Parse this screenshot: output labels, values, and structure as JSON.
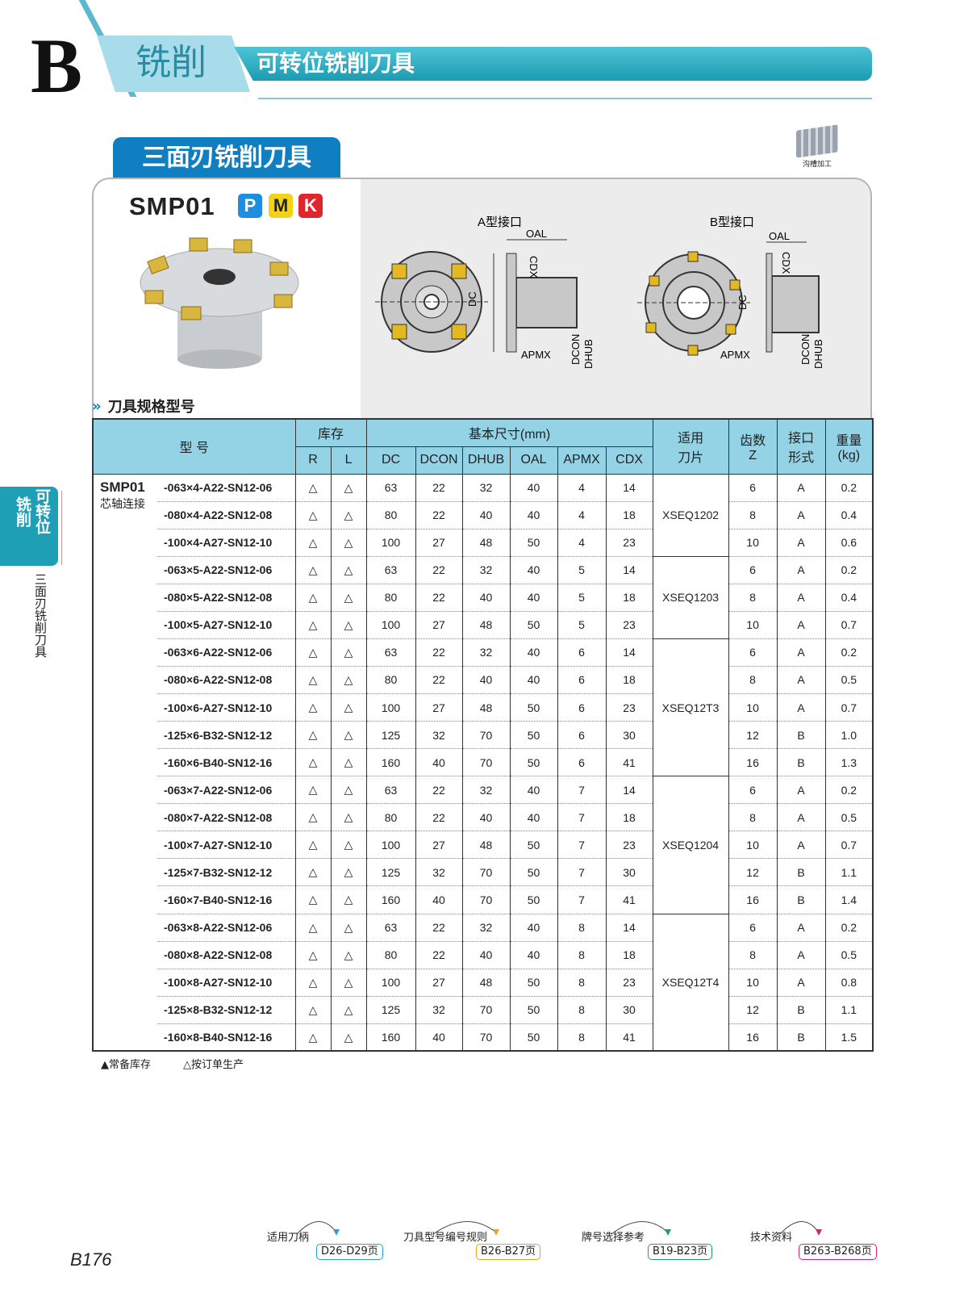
{
  "header": {
    "letter": "B",
    "category": "铣削",
    "title": "可转位铣削刀具"
  },
  "section": {
    "title": "三面刃铣削刀具",
    "application_icon": "groove-machining-icon",
    "application_label": "沟槽加工"
  },
  "product": {
    "name": "SMP01",
    "materials": [
      {
        "label": "P",
        "color": "#1e8fe0"
      },
      {
        "label": "M",
        "color": "#f3d21a"
      },
      {
        "label": "K",
        "color": "#e0262d"
      }
    ],
    "diagram_a_title": "A型接口",
    "diagram_b_title": "B型接口",
    "dims": {
      "oal": "OAL",
      "cdx": "CDX",
      "dc": "DC",
      "apmx": "APMX",
      "dcon": "DCON",
      "dhub": "DHUB"
    }
  },
  "spec_title": "刀具规格型号",
  "table": {
    "headers": {
      "model": "型 号",
      "stock": "库存",
      "r": "R",
      "l": "L",
      "basic": "基本尺寸(mm)",
      "dc": "DC",
      "dcon": "DCON",
      "dhub": "DHUB",
      "oal": "OAL",
      "apmx": "APMX",
      "cdx": "CDX",
      "insert": "适用\n刀片",
      "teeth": "齿数\nZ",
      "interface": "接口\n形式",
      "weight": "重量\n(kg)"
    },
    "series_name": "SMP01",
    "series_desc": "芯轴连接",
    "insert_groups": [
      {
        "insert": "XSEQ1202",
        "rows": 3
      },
      {
        "insert": "XSEQ1203",
        "rows": 3
      },
      {
        "insert": "XSEQ12T3",
        "rows": 5
      },
      {
        "insert": "XSEQ1204",
        "rows": 5
      },
      {
        "insert": "XSEQ12T4",
        "rows": 5
      }
    ],
    "rows": [
      [
        "-063×4-A22-SN12-06",
        "△",
        "△",
        "63",
        "22",
        "32",
        "40",
        "4",
        "14",
        "6",
        "A",
        "0.2"
      ],
      [
        "-080×4-A22-SN12-08",
        "△",
        "△",
        "80",
        "22",
        "40",
        "40",
        "4",
        "18",
        "8",
        "A",
        "0.4"
      ],
      [
        "-100×4-A27-SN12-10",
        "△",
        "△",
        "100",
        "27",
        "48",
        "50",
        "4",
        "23",
        "10",
        "A",
        "0.6"
      ],
      [
        "-063×5-A22-SN12-06",
        "△",
        "△",
        "63",
        "22",
        "32",
        "40",
        "5",
        "14",
        "6",
        "A",
        "0.2"
      ],
      [
        "-080×5-A22-SN12-08",
        "△",
        "△",
        "80",
        "22",
        "40",
        "40",
        "5",
        "18",
        "8",
        "A",
        "0.4"
      ],
      [
        "-100×5-A27-SN12-10",
        "△",
        "△",
        "100",
        "27",
        "48",
        "50",
        "5",
        "23",
        "10",
        "A",
        "0.7"
      ],
      [
        "-063×6-A22-SN12-06",
        "△",
        "△",
        "63",
        "22",
        "32",
        "40",
        "6",
        "14",
        "6",
        "A",
        "0.2"
      ],
      [
        "-080×6-A22-SN12-08",
        "△",
        "△",
        "80",
        "22",
        "40",
        "40",
        "6",
        "18",
        "8",
        "A",
        "0.5"
      ],
      [
        "-100×6-A27-SN12-10",
        "△",
        "△",
        "100",
        "27",
        "48",
        "50",
        "6",
        "23",
        "10",
        "A",
        "0.7"
      ],
      [
        "-125×6-B32-SN12-12",
        "△",
        "△",
        "125",
        "32",
        "70",
        "50",
        "6",
        "30",
        "12",
        "B",
        "1.0"
      ],
      [
        "-160×6-B40-SN12-16",
        "△",
        "△",
        "160",
        "40",
        "70",
        "50",
        "6",
        "41",
        "16",
        "B",
        "1.3"
      ],
      [
        "-063×7-A22-SN12-06",
        "△",
        "△",
        "63",
        "22",
        "32",
        "40",
        "7",
        "14",
        "6",
        "A",
        "0.2"
      ],
      [
        "-080×7-A22-SN12-08",
        "△",
        "△",
        "80",
        "22",
        "40",
        "40",
        "7",
        "18",
        "8",
        "A",
        "0.5"
      ],
      [
        "-100×7-A27-SN12-10",
        "△",
        "△",
        "100",
        "27",
        "48",
        "50",
        "7",
        "23",
        "10",
        "A",
        "0.7"
      ],
      [
        "-125×7-B32-SN12-12",
        "△",
        "△",
        "125",
        "32",
        "70",
        "50",
        "7",
        "30",
        "12",
        "B",
        "1.1"
      ],
      [
        "-160×7-B40-SN12-16",
        "△",
        "△",
        "160",
        "40",
        "70",
        "50",
        "7",
        "41",
        "16",
        "B",
        "1.4"
      ],
      [
        "-063×8-A22-SN12-06",
        "△",
        "△",
        "63",
        "22",
        "32",
        "40",
        "8",
        "14",
        "6",
        "A",
        "0.2"
      ],
      [
        "-080×8-A22-SN12-08",
        "△",
        "△",
        "80",
        "22",
        "40",
        "40",
        "8",
        "18",
        "8",
        "A",
        "0.5"
      ],
      [
        "-100×8-A27-SN12-10",
        "△",
        "△",
        "100",
        "27",
        "48",
        "50",
        "8",
        "23",
        "10",
        "A",
        "0.8"
      ],
      [
        "-125×8-B32-SN12-12",
        "△",
        "△",
        "125",
        "32",
        "70",
        "50",
        "8",
        "30",
        "12",
        "B",
        "1.1"
      ],
      [
        "-160×8-B40-SN12-16",
        "△",
        "△",
        "160",
        "40",
        "70",
        "50",
        "8",
        "41",
        "16",
        "B",
        "1.5"
      ]
    ]
  },
  "legend": {
    "stock": "▲常备库存",
    "order": "△按订单生产"
  },
  "side_tab": {
    "line1": "可转位",
    "line2": "铣削",
    "sub": "三面刃铣削刀具"
  },
  "references": [
    {
      "label": "适用刀柄",
      "pages": "D26-D29页",
      "color": "#2a9fd8"
    },
    {
      "label": "刀具型号编号规则",
      "pages": "B26-B27页",
      "color": "#f0a020"
    },
    {
      "label": "牌号选择参考",
      "pages": "B19-B23页",
      "color": "#1fa060"
    },
    {
      "label": "技术资料",
      "pages": "B263-B268页",
      "color": "#e0206e"
    }
  ],
  "page_number": "B176"
}
